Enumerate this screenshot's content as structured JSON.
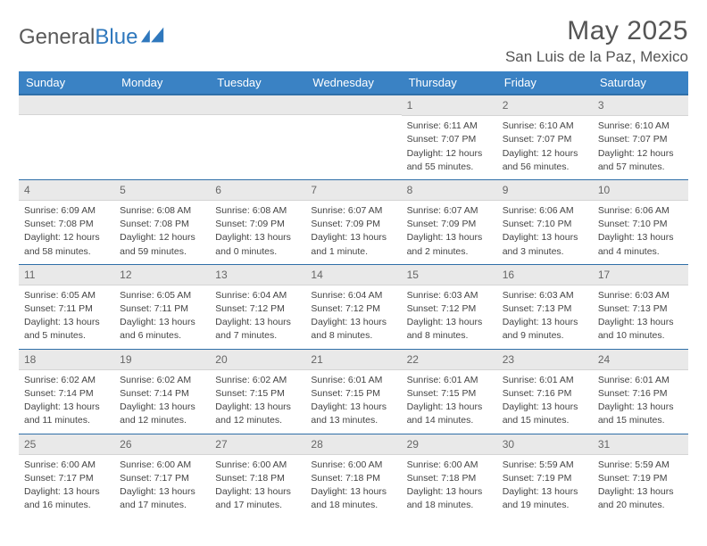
{
  "brand": {
    "part1": "General",
    "part2": "Blue"
  },
  "title": {
    "monthYear": "May 2025",
    "location": "San Luis de la Paz, Mexico"
  },
  "colors": {
    "headerBg": "#3a82c4",
    "headerBorder": "#2f6fa8",
    "dayNumBg": "#e9e9e9",
    "brandBlue": "#2f78bd",
    "textGray": "#555"
  },
  "dayHeaders": [
    "Sunday",
    "Monday",
    "Tuesday",
    "Wednesday",
    "Thursday",
    "Friday",
    "Saturday"
  ],
  "weeks": [
    [
      null,
      null,
      null,
      null,
      {
        "n": "1",
        "sr": "Sunrise: 6:11 AM",
        "ss": "Sunset: 7:07 PM",
        "dl1": "Daylight: 12 hours",
        "dl2": "and 55 minutes."
      },
      {
        "n": "2",
        "sr": "Sunrise: 6:10 AM",
        "ss": "Sunset: 7:07 PM",
        "dl1": "Daylight: 12 hours",
        "dl2": "and 56 minutes."
      },
      {
        "n": "3",
        "sr": "Sunrise: 6:10 AM",
        "ss": "Sunset: 7:07 PM",
        "dl1": "Daylight: 12 hours",
        "dl2": "and 57 minutes."
      }
    ],
    [
      {
        "n": "4",
        "sr": "Sunrise: 6:09 AM",
        "ss": "Sunset: 7:08 PM",
        "dl1": "Daylight: 12 hours",
        "dl2": "and 58 minutes."
      },
      {
        "n": "5",
        "sr": "Sunrise: 6:08 AM",
        "ss": "Sunset: 7:08 PM",
        "dl1": "Daylight: 12 hours",
        "dl2": "and 59 minutes."
      },
      {
        "n": "6",
        "sr": "Sunrise: 6:08 AM",
        "ss": "Sunset: 7:09 PM",
        "dl1": "Daylight: 13 hours",
        "dl2": "and 0 minutes."
      },
      {
        "n": "7",
        "sr": "Sunrise: 6:07 AM",
        "ss": "Sunset: 7:09 PM",
        "dl1": "Daylight: 13 hours",
        "dl2": "and 1 minute."
      },
      {
        "n": "8",
        "sr": "Sunrise: 6:07 AM",
        "ss": "Sunset: 7:09 PM",
        "dl1": "Daylight: 13 hours",
        "dl2": "and 2 minutes."
      },
      {
        "n": "9",
        "sr": "Sunrise: 6:06 AM",
        "ss": "Sunset: 7:10 PM",
        "dl1": "Daylight: 13 hours",
        "dl2": "and 3 minutes."
      },
      {
        "n": "10",
        "sr": "Sunrise: 6:06 AM",
        "ss": "Sunset: 7:10 PM",
        "dl1": "Daylight: 13 hours",
        "dl2": "and 4 minutes."
      }
    ],
    [
      {
        "n": "11",
        "sr": "Sunrise: 6:05 AM",
        "ss": "Sunset: 7:11 PM",
        "dl1": "Daylight: 13 hours",
        "dl2": "and 5 minutes."
      },
      {
        "n": "12",
        "sr": "Sunrise: 6:05 AM",
        "ss": "Sunset: 7:11 PM",
        "dl1": "Daylight: 13 hours",
        "dl2": "and 6 minutes."
      },
      {
        "n": "13",
        "sr": "Sunrise: 6:04 AM",
        "ss": "Sunset: 7:12 PM",
        "dl1": "Daylight: 13 hours",
        "dl2": "and 7 minutes."
      },
      {
        "n": "14",
        "sr": "Sunrise: 6:04 AM",
        "ss": "Sunset: 7:12 PM",
        "dl1": "Daylight: 13 hours",
        "dl2": "and 8 minutes."
      },
      {
        "n": "15",
        "sr": "Sunrise: 6:03 AM",
        "ss": "Sunset: 7:12 PM",
        "dl1": "Daylight: 13 hours",
        "dl2": "and 8 minutes."
      },
      {
        "n": "16",
        "sr": "Sunrise: 6:03 AM",
        "ss": "Sunset: 7:13 PM",
        "dl1": "Daylight: 13 hours",
        "dl2": "and 9 minutes."
      },
      {
        "n": "17",
        "sr": "Sunrise: 6:03 AM",
        "ss": "Sunset: 7:13 PM",
        "dl1": "Daylight: 13 hours",
        "dl2": "and 10 minutes."
      }
    ],
    [
      {
        "n": "18",
        "sr": "Sunrise: 6:02 AM",
        "ss": "Sunset: 7:14 PM",
        "dl1": "Daylight: 13 hours",
        "dl2": "and 11 minutes."
      },
      {
        "n": "19",
        "sr": "Sunrise: 6:02 AM",
        "ss": "Sunset: 7:14 PM",
        "dl1": "Daylight: 13 hours",
        "dl2": "and 12 minutes."
      },
      {
        "n": "20",
        "sr": "Sunrise: 6:02 AM",
        "ss": "Sunset: 7:15 PM",
        "dl1": "Daylight: 13 hours",
        "dl2": "and 12 minutes."
      },
      {
        "n": "21",
        "sr": "Sunrise: 6:01 AM",
        "ss": "Sunset: 7:15 PM",
        "dl1": "Daylight: 13 hours",
        "dl2": "and 13 minutes."
      },
      {
        "n": "22",
        "sr": "Sunrise: 6:01 AM",
        "ss": "Sunset: 7:15 PM",
        "dl1": "Daylight: 13 hours",
        "dl2": "and 14 minutes."
      },
      {
        "n": "23",
        "sr": "Sunrise: 6:01 AM",
        "ss": "Sunset: 7:16 PM",
        "dl1": "Daylight: 13 hours",
        "dl2": "and 15 minutes."
      },
      {
        "n": "24",
        "sr": "Sunrise: 6:01 AM",
        "ss": "Sunset: 7:16 PM",
        "dl1": "Daylight: 13 hours",
        "dl2": "and 15 minutes."
      }
    ],
    [
      {
        "n": "25",
        "sr": "Sunrise: 6:00 AM",
        "ss": "Sunset: 7:17 PM",
        "dl1": "Daylight: 13 hours",
        "dl2": "and 16 minutes."
      },
      {
        "n": "26",
        "sr": "Sunrise: 6:00 AM",
        "ss": "Sunset: 7:17 PM",
        "dl1": "Daylight: 13 hours",
        "dl2": "and 17 minutes."
      },
      {
        "n": "27",
        "sr": "Sunrise: 6:00 AM",
        "ss": "Sunset: 7:18 PM",
        "dl1": "Daylight: 13 hours",
        "dl2": "and 17 minutes."
      },
      {
        "n": "28",
        "sr": "Sunrise: 6:00 AM",
        "ss": "Sunset: 7:18 PM",
        "dl1": "Daylight: 13 hours",
        "dl2": "and 18 minutes."
      },
      {
        "n": "29",
        "sr": "Sunrise: 6:00 AM",
        "ss": "Sunset: 7:18 PM",
        "dl1": "Daylight: 13 hours",
        "dl2": "and 18 minutes."
      },
      {
        "n": "30",
        "sr": "Sunrise: 5:59 AM",
        "ss": "Sunset: 7:19 PM",
        "dl1": "Daylight: 13 hours",
        "dl2": "and 19 minutes."
      },
      {
        "n": "31",
        "sr": "Sunrise: 5:59 AM",
        "ss": "Sunset: 7:19 PM",
        "dl1": "Daylight: 13 hours",
        "dl2": "and 20 minutes."
      }
    ]
  ]
}
